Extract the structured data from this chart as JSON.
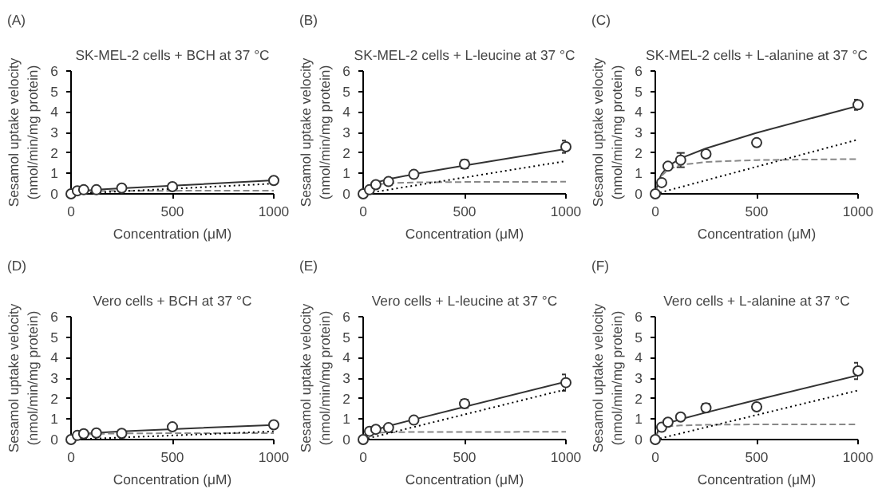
{
  "chart_data": [
    {
      "type": "scatter",
      "title": "SK-MEL-2 cells + BCH at 37 °C",
      "annotations": [
        "(A)"
      ],
      "xlabel": "Concentration (μM)",
      "ylabel": "Sesamol uptake velocity\n(nmol/min/mg protein)",
      "xlim": [
        0,
        1000
      ],
      "ylim": [
        0,
        6
      ],
      "xticks": [
        0,
        500,
        1000
      ],
      "yticks": [
        0,
        1,
        2,
        3,
        4,
        5,
        6
      ],
      "grid": false,
      "series": [
        {
          "type": "line",
          "color": "#333333",
          "line_style": "solid",
          "x": [
            0,
            15,
            31.25,
            62.5,
            125,
            250,
            500,
            1000
          ],
          "values": [
            0,
            0.08,
            0.11,
            0.15,
            0.2,
            0.27,
            0.4,
            0.66
          ]
        },
        {
          "type": "line",
          "color": "#888888",
          "line_style": "dashed",
          "x": [
            0,
            15,
            31.25,
            62.5,
            125,
            250,
            500,
            1000
          ],
          "values": [
            0,
            0.07,
            0.1,
            0.12,
            0.14,
            0.15,
            0.15,
            0.16
          ]
        },
        {
          "type": "line",
          "color": "#000000",
          "line_style": "dotted",
          "x": [
            0,
            1000
          ],
          "values": [
            0,
            0.5
          ]
        },
        {
          "type": "scatter",
          "color": "#333333",
          "marker": "circle",
          "x": [
            0,
            31.25,
            62.5,
            125,
            250,
            500,
            1000
          ],
          "values": [
            0,
            0.15,
            0.2,
            0.2,
            0.28,
            0.35,
            0.65
          ],
          "errors": [
            null,
            0.03,
            0.03,
            0.05,
            0.04,
            0.05,
            0.1
          ]
        }
      ]
    },
    {
      "type": "scatter",
      "title": "SK-MEL-2 cells + L-leucine at 37 °C",
      "annotations": [
        "(B)"
      ],
      "xlabel": "Concentration (μM)",
      "ylabel": "Sesamol uptake velocity\n(nmol/min/mg protein)",
      "xlim": [
        0,
        1000
      ],
      "ylim": [
        0,
        6
      ],
      "xticks": [
        0,
        500,
        1000
      ],
      "yticks": [
        0,
        1,
        2,
        3,
        4,
        5,
        6
      ],
      "grid": false,
      "series": [
        {
          "type": "line",
          "color": "#333333",
          "line_style": "solid",
          "x": [
            0,
            15,
            31.25,
            62.5,
            125,
            250,
            500,
            1000
          ],
          "values": [
            0,
            0.28,
            0.41,
            0.55,
            0.72,
            0.96,
            1.38,
            2.19
          ]
        },
        {
          "type": "line",
          "color": "#888888",
          "line_style": "dashed",
          "x": [
            0,
            15,
            31.25,
            62.5,
            125,
            250,
            500,
            1000
          ],
          "values": [
            0,
            0.26,
            0.36,
            0.45,
            0.52,
            0.56,
            0.58,
            0.59
          ]
        },
        {
          "type": "line",
          "color": "#000000",
          "line_style": "dotted",
          "x": [
            0,
            1000
          ],
          "values": [
            0,
            1.6
          ]
        },
        {
          "type": "scatter",
          "color": "#333333",
          "marker": "circle",
          "x": [
            0,
            31.25,
            62.5,
            125,
            250,
            500,
            1000
          ],
          "values": [
            0,
            0.2,
            0.45,
            0.6,
            0.95,
            1.45,
            2.3
          ],
          "errors": [
            null,
            0.05,
            0.1,
            0.15,
            0.1,
            0.2,
            0.3
          ]
        }
      ]
    },
    {
      "type": "scatter",
      "title": "SK-MEL-2 cells + L-alanine at 37 °C",
      "annotations": [
        "(C)"
      ],
      "xlabel": "Concentration (μM)",
      "ylabel": "Sesamol uptake velocity\n(nmol/min/mg protein)",
      "xlim": [
        0,
        1000
      ],
      "ylim": [
        0,
        6
      ],
      "xticks": [
        0,
        500,
        1000
      ],
      "yticks": [
        0,
        1,
        2,
        3,
        4,
        5,
        6
      ],
      "grid": false,
      "series": [
        {
          "type": "line",
          "color": "#333333",
          "line_style": "solid",
          "x": [
            0,
            15,
            31.25,
            62.5,
            125,
            250,
            500,
            1000
          ],
          "values": [
            0,
            0.62,
            0.97,
            1.35,
            1.74,
            2.22,
            2.98,
            4.3
          ]
        },
        {
          "type": "line",
          "color": "#888888",
          "line_style": "dashed",
          "x": [
            0,
            15,
            31.25,
            62.5,
            125,
            250,
            500,
            1000
          ],
          "values": [
            0,
            0.58,
            0.89,
            1.18,
            1.41,
            1.56,
            1.65,
            1.7
          ]
        },
        {
          "type": "line",
          "color": "#000000",
          "line_style": "dotted",
          "x": [
            0,
            1000
          ],
          "values": [
            0,
            2.65
          ]
        },
        {
          "type": "scatter",
          "color": "#333333",
          "marker": "circle",
          "x": [
            0,
            31.25,
            62.5,
            125,
            250,
            500,
            1000
          ],
          "values": [
            0,
            0.55,
            1.35,
            1.65,
            1.95,
            2.5,
            4.35
          ],
          "errors": [
            null,
            0.1,
            0.1,
            0.35,
            0.1,
            0.05,
            0.25
          ]
        }
      ]
    },
    {
      "type": "scatter",
      "title": "Vero cells + BCH at 37 °C",
      "annotations": [
        "(D)"
      ],
      "xlabel": "Concentration (μM)",
      "ylabel": "Sesamol uptake velocity\n(nmol/min/mg protein)",
      "xlim": [
        0,
        1000
      ],
      "ylim": [
        0,
        6
      ],
      "xticks": [
        0,
        500,
        1000
      ],
      "yticks": [
        0,
        1,
        2,
        3,
        4,
        5,
        6
      ],
      "grid": false,
      "series": [
        {
          "type": "line",
          "color": "#333333",
          "line_style": "solid",
          "x": [
            0,
            15,
            31.25,
            62.5,
            125,
            250,
            500,
            1000
          ],
          "values": [
            0,
            0.15,
            0.2,
            0.27,
            0.33,
            0.4,
            0.51,
            0.71
          ]
        },
        {
          "type": "line",
          "color": "#888888",
          "line_style": "dashed",
          "x": [
            0,
            15,
            31.25,
            62.5,
            125,
            250,
            500,
            1000
          ],
          "values": [
            0,
            0.14,
            0.19,
            0.24,
            0.28,
            0.3,
            0.31,
            0.31
          ]
        },
        {
          "type": "line",
          "color": "#000000",
          "line_style": "dotted",
          "x": [
            0,
            1000
          ],
          "values": [
            0,
            0.4
          ]
        },
        {
          "type": "scatter",
          "color": "#333333",
          "marker": "circle",
          "x": [
            0,
            31.25,
            62.5,
            125,
            250,
            500,
            1000
          ],
          "values": [
            0,
            0.2,
            0.28,
            0.32,
            0.3,
            0.62,
            0.72
          ],
          "errors": [
            null,
            0.03,
            0.03,
            0.04,
            0.04,
            0.05,
            0.15
          ]
        }
      ]
    },
    {
      "type": "scatter",
      "title": "Vero cells + L-leucine at 37 °C",
      "annotations": [
        "(E)"
      ],
      "xlabel": "Concentration (μM)",
      "ylabel": "Sesamol uptake velocity\n(nmol/min/mg protein)",
      "xlim": [
        0,
        1000
      ],
      "ylim": [
        0,
        6
      ],
      "xticks": [
        0,
        500,
        1000
      ],
      "yticks": [
        0,
        1,
        2,
        3,
        4,
        5,
        6
      ],
      "grid": false,
      "series": [
        {
          "type": "line",
          "color": "#333333",
          "line_style": "solid",
          "x": [
            0,
            15,
            31.25,
            62.5,
            125,
            250,
            500,
            1000
          ],
          "values": [
            0,
            0.27,
            0.37,
            0.48,
            0.66,
            0.98,
            1.6,
            2.83
          ]
        },
        {
          "type": "line",
          "color": "#888888",
          "line_style": "dashed",
          "x": [
            0,
            15,
            31.25,
            62.5,
            125,
            250,
            500,
            1000
          ],
          "values": [
            0,
            0.23,
            0.29,
            0.33,
            0.35,
            0.37,
            0.37,
            0.38
          ]
        },
        {
          "type": "line",
          "color": "#000000",
          "line_style": "dotted",
          "x": [
            0,
            1000
          ],
          "values": [
            0,
            2.45
          ]
        },
        {
          "type": "scatter",
          "color": "#333333",
          "marker": "circle",
          "x": [
            0,
            31.25,
            62.5,
            125,
            250,
            500,
            1000
          ],
          "values": [
            0,
            0.4,
            0.5,
            0.58,
            0.95,
            1.75,
            2.78
          ],
          "errors": [
            null,
            0.05,
            0.05,
            0.1,
            0.1,
            0.2,
            0.4
          ]
        }
      ]
    },
    {
      "type": "scatter",
      "title": "Vero cells + L-alanine at 37 °C",
      "annotations": [
        "(F)"
      ],
      "xlabel": "Concentration (μM)",
      "ylabel": "Sesamol uptake velocity\n(nmol/min/mg protein)",
      "xlim": [
        0,
        1000
      ],
      "ylim": [
        0,
        6
      ],
      "xticks": [
        0,
        500,
        1000
      ],
      "yticks": [
        0,
        1,
        2,
        3,
        4,
        5,
        6
      ],
      "grid": false,
      "series": [
        {
          "type": "line",
          "color": "#333333",
          "line_style": "solid",
          "x": [
            0,
            15,
            31.25,
            62.5,
            125,
            250,
            500,
            1000
          ],
          "values": [
            0,
            0.49,
            0.64,
            0.8,
            0.99,
            1.32,
            1.94,
            3.14
          ]
        },
        {
          "type": "line",
          "color": "#888888",
          "line_style": "dashed",
          "x": [
            0,
            15,
            31.25,
            62.5,
            125,
            250,
            500,
            1000
          ],
          "values": [
            0,
            0.45,
            0.57,
            0.65,
            0.69,
            0.72,
            0.74,
            0.74
          ]
        },
        {
          "type": "line",
          "color": "#000000",
          "line_style": "dotted",
          "x": [
            0,
            1000
          ],
          "values": [
            0,
            2.4
          ]
        },
        {
          "type": "scatter",
          "color": "#333333",
          "marker": "circle",
          "x": [
            0,
            31.25,
            62.5,
            125,
            250,
            500,
            1000
          ],
          "values": [
            0,
            0.6,
            0.85,
            1.1,
            1.55,
            1.6,
            3.35
          ],
          "errors": [
            null,
            0.05,
            0.1,
            0.05,
            0.2,
            0.1,
            0.4
          ]
        }
      ]
    }
  ]
}
